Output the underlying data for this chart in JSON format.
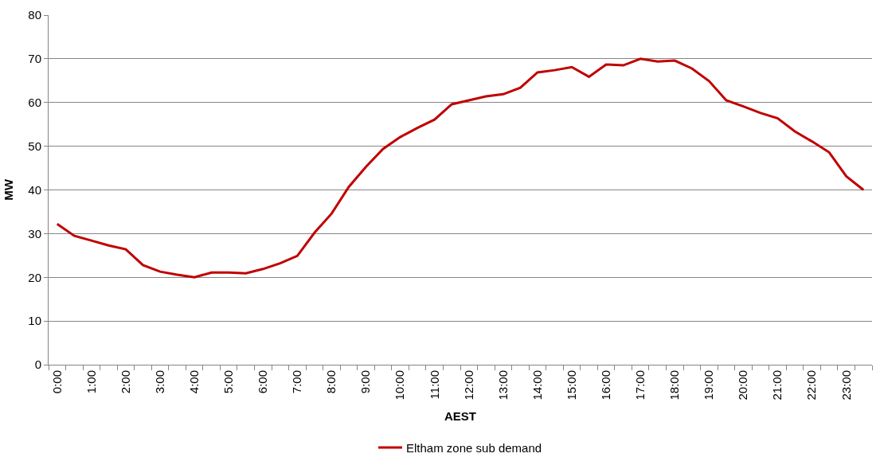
{
  "chart_data": {
    "type": "line",
    "xlabel": "AEST",
    "ylabel": "MW",
    "categories": [
      "0:00",
      null,
      "1:00",
      null,
      "2:00",
      null,
      "3:00",
      null,
      "4:00",
      null,
      "5:00",
      null,
      "6:00",
      null,
      "7:00",
      null,
      "8:00",
      null,
      "9:00",
      null,
      "10:00",
      null,
      "11:00",
      null,
      "12:00",
      null,
      "13:00",
      null,
      "14:00",
      null,
      "15:00",
      null,
      "16:00",
      null,
      "17:00",
      null,
      "18:00",
      null,
      "19:00",
      null,
      "20:00",
      null,
      "21:00",
      null,
      "22:00",
      null,
      "23:00",
      null
    ],
    "series": [
      {
        "name": "Eltham zone sub demand",
        "color": "#c00000",
        "values": [
          32.2,
          29.5,
          28.4,
          27.3,
          26.4,
          22.8,
          21.3,
          20.6,
          20.0,
          21.1,
          21.1,
          20.9,
          21.9,
          23.2,
          24.9,
          30.2,
          34.6,
          40.7,
          45.3,
          49.4,
          52.1,
          54.2,
          56.1,
          59.6,
          60.5,
          61.4,
          61.9,
          63.4,
          66.9,
          67.4,
          68.1,
          65.9,
          68.7,
          68.5,
          70.0,
          69.4,
          69.6,
          67.8,
          64.9,
          60.5,
          59.1,
          57.6,
          56.4,
          53.4,
          51.1,
          48.6,
          43.1,
          40.0
        ]
      }
    ],
    "ylim": [
      0,
      80
    ],
    "yticks": [
      0,
      10,
      20,
      30,
      40,
      50,
      60,
      70,
      80
    ],
    "grid": "y",
    "legend": "bottom",
    "marker": "none",
    "line_style": "solid"
  }
}
